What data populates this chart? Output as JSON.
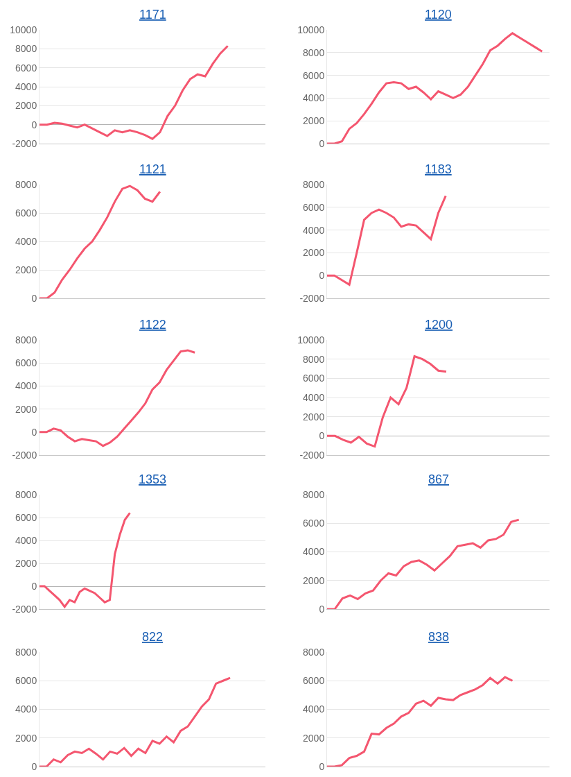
{
  "chart_data": [
    {
      "type": "line",
      "title": "1171",
      "categories": [
        null,
        null,
        null,
        null,
        null,
        null,
        null,
        null,
        null,
        null,
        null,
        null,
        null,
        null,
        null,
        null,
        null,
        null,
        null,
        null,
        null,
        null,
        null,
        null,
        null,
        null,
        null,
        null,
        null,
        null,
        null
      ],
      "series": [
        {
          "color": "#f4566f",
          "values": [
            0,
            0,
            200,
            100,
            -100,
            -300,
            0,
            -400,
            -800,
            -1200,
            -600,
            -800,
            -600,
            -800,
            -1100,
            -1500,
            -800,
            900,
            2000,
            3600,
            4800,
            5300,
            5100,
            6400,
            7500,
            8300,
            null,
            null,
            null,
            null,
            null
          ]
        }
      ],
      "ylim": [
        -2000,
        10000
      ],
      "yticks": [
        -2000,
        0,
        2000,
        4000,
        6000,
        8000,
        10000
      ],
      "grid": "y",
      "tick_labels": "y"
    },
    {
      "type": "line",
      "title": "1120",
      "categories": [
        null,
        null,
        null,
        null,
        null,
        null,
        null,
        null,
        null,
        null,
        null,
        null,
        null,
        null,
        null,
        null,
        null,
        null,
        null,
        null,
        null,
        null,
        null,
        null,
        null,
        null,
        null,
        null,
        null,
        null,
        null
      ],
      "series": [
        {
          "color": "#f4566f",
          "values": [
            0,
            0,
            200,
            1300,
            1800,
            2600,
            3500,
            4500,
            5300,
            5400,
            5300,
            4800,
            5000,
            4500,
            3900,
            4600,
            4300,
            4000,
            4300,
            5000,
            6000,
            7000,
            8200,
            8600,
            9200,
            9700,
            9300,
            8900,
            8500,
            8100,
            null
          ]
        }
      ],
      "ylim": [
        0,
        10000
      ],
      "yticks": [
        0,
        2000,
        4000,
        6000,
        8000,
        10000
      ],
      "grid": "y",
      "tick_labels": "y"
    },
    {
      "type": "line",
      "title": "1121",
      "categories": [
        null,
        null,
        null,
        null,
        null,
        null,
        null,
        null,
        null,
        null,
        null,
        null,
        null,
        null,
        null,
        null,
        null,
        null,
        null,
        null,
        null,
        null,
        null,
        null,
        null,
        null,
        null,
        null,
        null,
        null,
        null
      ],
      "series": [
        {
          "color": "#f4566f",
          "values": [
            0,
            0,
            400,
            1300,
            2000,
            2800,
            3500,
            4000,
            4800,
            5700,
            6800,
            7700,
            7900,
            7600,
            7000,
            6800,
            7500,
            null,
            null,
            null,
            null,
            null,
            null,
            null,
            null,
            null,
            null,
            null,
            null,
            null,
            null
          ]
        }
      ],
      "ylim": [
        0,
        8000
      ],
      "yticks": [
        0,
        2000,
        4000,
        6000,
        8000
      ],
      "grid": "y",
      "tick_labels": "y"
    },
    {
      "type": "line",
      "title": "1183",
      "categories": [
        null,
        null,
        null,
        null,
        null,
        null,
        null,
        null,
        null,
        null,
        null,
        null,
        null,
        null,
        null,
        null,
        null,
        null,
        null,
        null,
        null,
        null,
        null,
        null,
        null,
        null,
        null,
        null,
        null,
        null,
        null
      ],
      "series": [
        {
          "color": "#f4566f",
          "values": [
            0,
            0,
            -400,
            -800,
            2000,
            4900,
            5500,
            5800,
            5500,
            5100,
            4300,
            4500,
            4400,
            3800,
            3200,
            5500,
            7000,
            null,
            null,
            null,
            null,
            null,
            null,
            null,
            null,
            null,
            null,
            null,
            null,
            null,
            null
          ]
        }
      ],
      "ylim": [
        -2000,
        8000
      ],
      "yticks": [
        -2000,
        0,
        2000,
        4000,
        6000,
        8000
      ],
      "grid": "y",
      "tick_labels": "y"
    },
    {
      "type": "line",
      "title": "1122",
      "categories": [
        null,
        null,
        null,
        null,
        null,
        null,
        null,
        null,
        null,
        null,
        null,
        null,
        null,
        null,
        null,
        null,
        null,
        null,
        null,
        null,
        null,
        null,
        null,
        null,
        null,
        null,
        null,
        null,
        null,
        null,
        null,
        null,
        null
      ],
      "series": [
        {
          "color": "#f4566f",
          "values": [
            0,
            0,
            300,
            150,
            -400,
            -800,
            -600,
            -700,
            -800,
            -1200,
            -900,
            -400,
            300,
            1000,
            1700,
            2500,
            3700,
            4300,
            5400,
            6200,
            7000,
            7100,
            6900,
            null,
            null,
            null,
            null,
            null,
            null,
            null,
            null,
            null,
            null
          ]
        }
      ],
      "ylim": [
        -2000,
        8000
      ],
      "yticks": [
        -2000,
        0,
        2000,
        4000,
        6000,
        8000
      ],
      "grid": "y",
      "tick_labels": "y"
    },
    {
      "type": "line",
      "title": "1200",
      "categories": [
        null,
        null,
        null,
        null,
        null,
        null,
        null,
        null,
        null,
        null,
        null,
        null,
        null,
        null,
        null,
        null,
        null,
        null,
        null,
        null,
        null,
        null,
        null,
        null,
        null,
        null,
        null,
        null,
        null
      ],
      "series": [
        {
          "color": "#f4566f",
          "values": [
            0,
            0,
            -400,
            -700,
            -100,
            -800,
            -1100,
            1900,
            4000,
            3300,
            5000,
            8300,
            8000,
            7500,
            6800,
            6700,
            null,
            null,
            null,
            null,
            null,
            null,
            null,
            null,
            null,
            null,
            null,
            null,
            null
          ]
        }
      ],
      "ylim": [
        -2000,
        10000
      ],
      "yticks": [
        -2000,
        0,
        2000,
        4000,
        6000,
        8000,
        10000
      ],
      "grid": "y",
      "tick_labels": "y"
    },
    {
      "type": "line",
      "title": "1353",
      "categories": [
        null,
        null,
        null,
        null,
        null,
        null,
        null,
        null,
        null,
        null,
        null,
        null,
        null,
        null,
        null,
        null,
        null,
        null,
        null,
        null,
        null,
        null,
        null,
        null,
        null,
        null,
        null,
        null,
        null,
        null,
        null,
        null,
        null,
        null,
        null,
        null,
        null,
        null,
        null,
        null,
        null,
        null,
        null,
        null,
        null,
        null
      ],
      "series": [
        {
          "color": "#f4566f",
          "values": [
            0,
            0,
            -400,
            -800,
            -1200,
            -1800,
            -1200,
            -1400,
            -500,
            -200,
            -400,
            -600,
            -1000,
            -1400,
            -1200,
            2800,
            4500,
            5800,
            6400,
            null,
            null,
            null,
            null,
            null,
            null,
            null,
            null,
            null,
            null,
            null,
            null,
            null,
            null,
            null,
            null,
            null,
            null,
            null,
            null,
            null,
            null,
            null,
            null,
            null,
            null,
            null
          ]
        }
      ],
      "ylim": [
        -2000,
        8000
      ],
      "yticks": [
        -2000,
        0,
        2000,
        4000,
        6000,
        8000
      ],
      "grid": "y",
      "tick_labels": "y"
    },
    {
      "type": "line",
      "title": "867",
      "categories": [
        null,
        null,
        null,
        null,
        null,
        null,
        null,
        null,
        null,
        null,
        null,
        null,
        null,
        null,
        null,
        null,
        null,
        null,
        null,
        null,
        null,
        null,
        null,
        null,
        null,
        null,
        null,
        null,
        null,
        null
      ],
      "series": [
        {
          "color": "#f4566f",
          "values": [
            0,
            0,
            750,
            950,
            700,
            1100,
            1300,
            2000,
            2500,
            2350,
            3000,
            3300,
            3400,
            3100,
            2700,
            3200,
            3700,
            4400,
            4500,
            4600,
            4300,
            4800,
            4900,
            5200,
            6100,
            6250,
            null,
            null,
            null,
            null
          ]
        }
      ],
      "ylim": [
        0,
        8000
      ],
      "yticks": [
        0,
        2000,
        4000,
        6000,
        8000
      ],
      "grid": "y",
      "tick_labels": "y"
    },
    {
      "type": "line",
      "title": "822",
      "categories": [
        null,
        null,
        null,
        null,
        null,
        null,
        null,
        null,
        null,
        null,
        null,
        null,
        null,
        null,
        null,
        null,
        null,
        null,
        null,
        null,
        null,
        null,
        null,
        null,
        null,
        null,
        null,
        null,
        null,
        null,
        null,
        null,
        null
      ],
      "series": [
        {
          "color": "#f4566f",
          "values": [
            0,
            0,
            500,
            300,
            800,
            1050,
            950,
            1250,
            900,
            500,
            1050,
            900,
            1300,
            750,
            1250,
            950,
            1800,
            1600,
            2100,
            1700,
            2500,
            2800,
            3500,
            4200,
            4700,
            5800,
            6000,
            6200,
            null,
            null,
            null,
            null,
            null
          ]
        }
      ],
      "ylim": [
        0,
        8000
      ],
      "yticks": [
        0,
        2000,
        4000,
        6000,
        8000
      ],
      "grid": "y",
      "tick_labels": "y"
    },
    {
      "type": "line",
      "title": "838",
      "categories": [
        null,
        null,
        null,
        null,
        null,
        null,
        null,
        null,
        null,
        null,
        null,
        null,
        null,
        null,
        null,
        null,
        null,
        null,
        null,
        null,
        null,
        null,
        null,
        null,
        null,
        null,
        null,
        null,
        null,
        null,
        null
      ],
      "series": [
        {
          "color": "#f4566f",
          "values": [
            0,
            0,
            100,
            600,
            750,
            1050,
            2300,
            2250,
            2700,
            3000,
            3500,
            3750,
            4400,
            4600,
            4250,
            4800,
            4700,
            4650,
            5000,
            5200,
            5400,
            5700,
            6200,
            5800,
            6250,
            6000,
            null,
            null,
            null,
            null,
            null
          ]
        }
      ],
      "ylim": [
        0,
        8000
      ],
      "yticks": [
        0,
        2000,
        4000,
        6000,
        8000
      ],
      "grid": "y",
      "tick_labels": "y"
    }
  ]
}
